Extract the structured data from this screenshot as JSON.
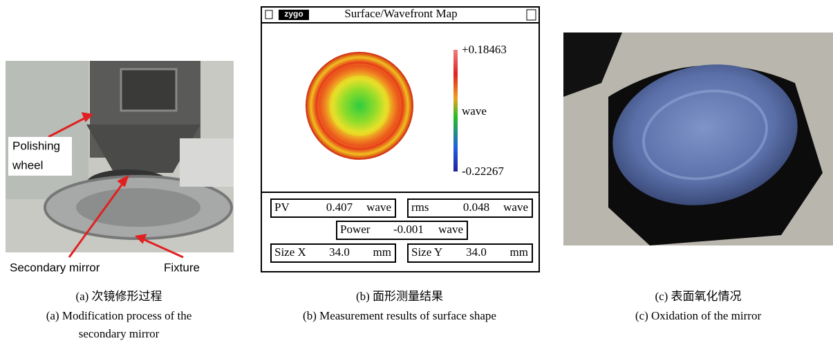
{
  "panel_a": {
    "labels": {
      "polishing_wheel": [
        "Polishing",
        "wheel"
      ],
      "secondary_mirror": "Secondary mirror",
      "fixture": "Fixture"
    },
    "caption_zh": "(a) 次镜修形过程",
    "caption_en": [
      "(a) Modification process of the",
      "secondary mirror"
    ]
  },
  "panel_b": {
    "window": {
      "logo": "zygo",
      "title": "Surface/Wavefront Map"
    },
    "colorbar": {
      "max": "+0.18463",
      "unit": "wave",
      "min": "-0.22267"
    },
    "fields": [
      {
        "label": "PV",
        "value": "0.407",
        "unit": "wave"
      },
      {
        "label": "rms",
        "value": "0.048",
        "unit": "wave"
      },
      {
        "label": "Power",
        "value": "-0.001",
        "unit": "wave"
      },
      {
        "label": "Size X",
        "value": "34.0",
        "unit": "mm"
      },
      {
        "label": "Size Y",
        "value": "34.0",
        "unit": "mm"
      }
    ],
    "caption_zh": "(b) 面形测量结果",
    "caption_en": "(b) Measurement results of surface shape"
  },
  "panel_c": {
    "caption_zh": "(c) 表面氧化情况",
    "caption_en": "(c) Oxidation of the mirror"
  }
}
